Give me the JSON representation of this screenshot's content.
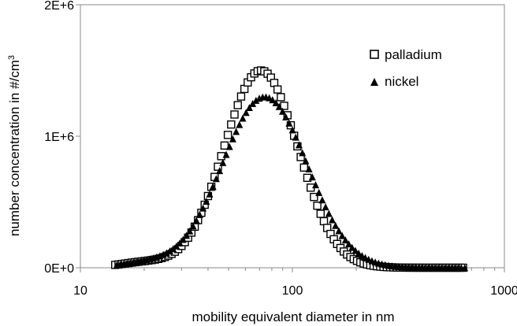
{
  "chart_data": {
    "type": "scatter",
    "x_scale": "log",
    "xlim": [
      10,
      1000
    ],
    "ylim": [
      0,
      2000000
    ],
    "grid": false,
    "legend_position": "top-right",
    "xlabel": "mobility equivalent diameter in nm",
    "ylabel": "number concentration in #/cm",
    "ylabel_superscript": "3",
    "x_ticks": [
      {
        "value": 10,
        "label": "10"
      },
      {
        "value": 100,
        "label": "100"
      },
      {
        "value": 1000,
        "label": "1000"
      }
    ],
    "y_ticks": [
      {
        "value": 0,
        "label": "0E+0"
      },
      {
        "value": 1000000,
        "label": "1E+6"
      },
      {
        "value": 2000000,
        "label": "2E+6"
      }
    ],
    "series": [
      {
        "name": "palladium",
        "marker": "open-square",
        "color": "#000000",
        "peak": 1500000,
        "mode_nm": 71,
        "sigma_log10": 0.175,
        "tail_amp": 40000,
        "tail_center_nm": 20,
        "tail_sigma_log10": 0.12
      },
      {
        "name": "nickel",
        "marker": "filled-triangle",
        "color": "#000000",
        "peak": 1300000,
        "mode_nm": 74,
        "sigma_log10": 0.2,
        "tail_amp": 35000,
        "tail_center_nm": 20,
        "tail_sigma_log10": 0.12
      }
    ],
    "x_start_nm": 14.6,
    "x_end_nm": 661,
    "points_per_decade": 64
  }
}
